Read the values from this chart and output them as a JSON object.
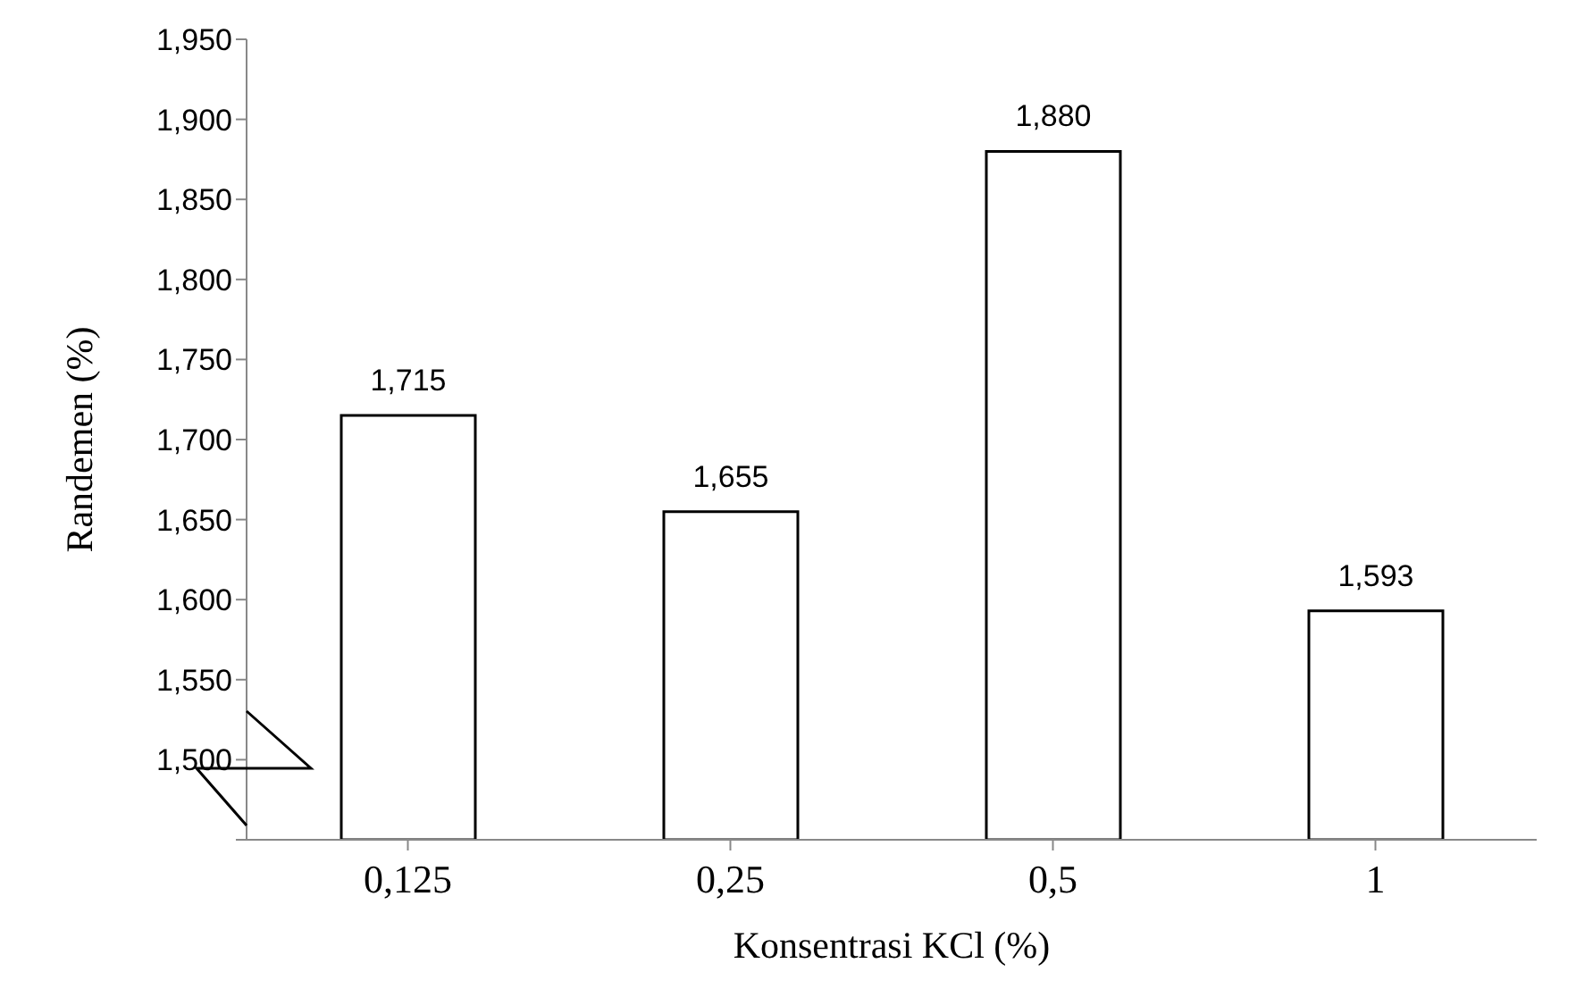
{
  "chart_data": {
    "type": "bar",
    "xlabel": "Konsentrasi KCl (%)",
    "ylabel": "Randemen (%)",
    "categories": [
      "0,125",
      "0,25",
      "0,5",
      "1"
    ],
    "values": [
      1.715,
      1.655,
      1.88,
      1.593
    ],
    "value_labels": [
      "1,715",
      "1,655",
      "1,880",
      "1,593"
    ],
    "color": "#ffffff",
    "ylim": [
      1.45,
      1.95
    ],
    "yticks": [
      {
        "value": 1.45,
        "label": null
      },
      {
        "value": 1.5,
        "label": "1,500"
      },
      {
        "value": 1.55,
        "label": "1,550"
      },
      {
        "value": 1.6,
        "label": "1,600"
      },
      {
        "value": 1.65,
        "label": "1,650"
      },
      {
        "value": 1.7,
        "label": "1,700"
      },
      {
        "value": 1.75,
        "label": "1,750"
      },
      {
        "value": 1.8,
        "label": "1,800"
      },
      {
        "value": 1.85,
        "label": "1,850"
      },
      {
        "value": 1.9,
        "label": "1,900"
      },
      {
        "value": 1.95,
        "label": "1,950"
      }
    ],
    "grid": false,
    "legend": false
  }
}
